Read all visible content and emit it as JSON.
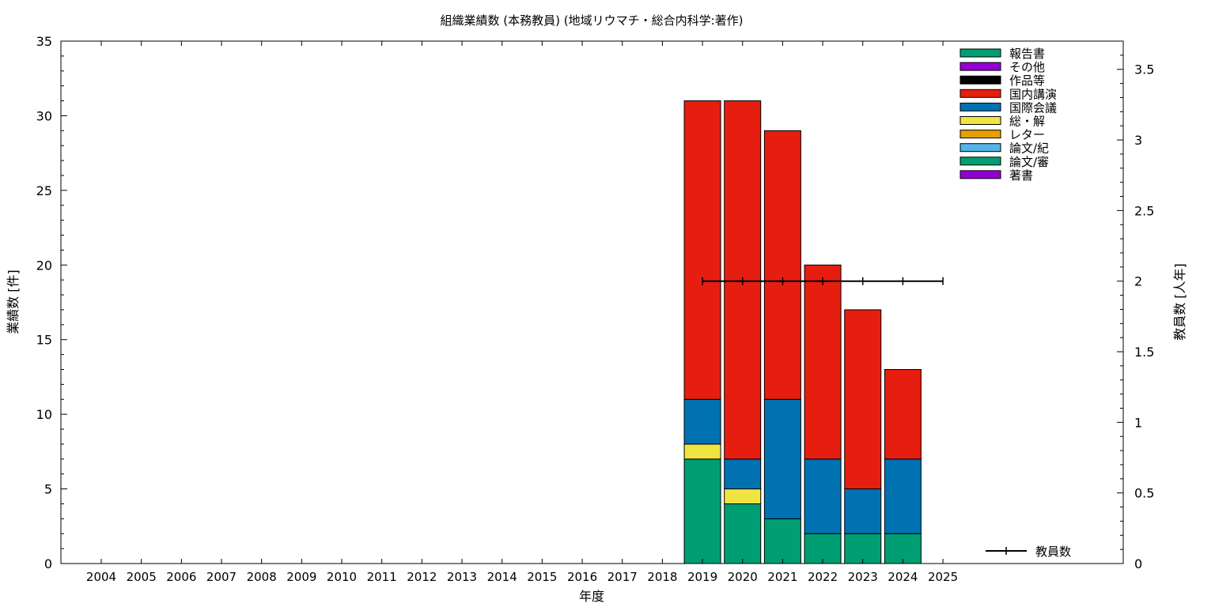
{
  "chart_data": {
    "type": "bar",
    "stacked": true,
    "title": "組織業績数 (本務教員) (地域リウマチ・総合内科学:著作)",
    "xlabel": "年度",
    "ylabel": "業績数 [件]",
    "y2label": "教員数 [人年]",
    "ylim": [
      0,
      35
    ],
    "y2lim": [
      0,
      3.7
    ],
    "yticks": [
      0,
      5,
      10,
      15,
      20,
      25,
      30,
      35
    ],
    "y2ticks": [
      0,
      0.5,
      1,
      1.5,
      2,
      2.5,
      3,
      3.5
    ],
    "categories": [
      "2004",
      "2005",
      "2006",
      "2007",
      "2008",
      "2009",
      "2010",
      "2011",
      "2012",
      "2013",
      "2014",
      "2015",
      "2016",
      "2017",
      "2018",
      "2019",
      "2020",
      "2021",
      "2022",
      "2023",
      "2024",
      "2025"
    ],
    "legend_position": "top-right",
    "series": [
      {
        "name": "著書",
        "color": "#9400d3",
        "values": [
          0,
          0,
          0,
          0,
          0,
          0,
          0,
          0,
          0,
          0,
          0,
          0,
          0,
          0,
          0,
          0,
          0,
          0,
          0,
          0,
          0,
          0
        ]
      },
      {
        "name": "論文/審",
        "color": "#009e73",
        "values": [
          0,
          0,
          0,
          0,
          0,
          0,
          0,
          0,
          0,
          0,
          0,
          0,
          0,
          0,
          0,
          7,
          4,
          3,
          2,
          2,
          2,
          0
        ]
      },
      {
        "name": "論文/紀",
        "color": "#56b4e9",
        "values": [
          0,
          0,
          0,
          0,
          0,
          0,
          0,
          0,
          0,
          0,
          0,
          0,
          0,
          0,
          0,
          0,
          0,
          0,
          0,
          0,
          0,
          0
        ]
      },
      {
        "name": "レター",
        "color": "#e69f00",
        "values": [
          0,
          0,
          0,
          0,
          0,
          0,
          0,
          0,
          0,
          0,
          0,
          0,
          0,
          0,
          0,
          0,
          0,
          0,
          0,
          0,
          0,
          0
        ]
      },
      {
        "name": "総・解",
        "color": "#f0e442",
        "values": [
          0,
          0,
          0,
          0,
          0,
          0,
          0,
          0,
          0,
          0,
          0,
          0,
          0,
          0,
          0,
          1,
          1,
          0,
          0,
          0,
          0,
          0
        ]
      },
      {
        "name": "国際会議",
        "color": "#0072b2",
        "values": [
          0,
          0,
          0,
          0,
          0,
          0,
          0,
          0,
          0,
          0,
          0,
          0,
          0,
          0,
          0,
          3,
          2,
          8,
          5,
          3,
          5,
          0
        ]
      },
      {
        "name": "国内講演",
        "color": "#e51e10",
        "values": [
          0,
          0,
          0,
          0,
          0,
          0,
          0,
          0,
          0,
          0,
          0,
          0,
          0,
          0,
          0,
          20,
          24,
          18,
          13,
          12,
          6,
          0
        ]
      },
      {
        "name": "作品等",
        "color": "#000000",
        "values": [
          0,
          0,
          0,
          0,
          0,
          0,
          0,
          0,
          0,
          0,
          0,
          0,
          0,
          0,
          0,
          0,
          0,
          0,
          0,
          0,
          0,
          0
        ]
      },
      {
        "name": "その他",
        "color": "#9400d3",
        "values": [
          0,
          0,
          0,
          0,
          0,
          0,
          0,
          0,
          0,
          0,
          0,
          0,
          0,
          0,
          0,
          0,
          0,
          0,
          0,
          0,
          0,
          0
        ]
      },
      {
        "name": "報告書",
        "color": "#009e73",
        "values": [
          0,
          0,
          0,
          0,
          0,
          0,
          0,
          0,
          0,
          0,
          0,
          0,
          0,
          0,
          0,
          0,
          0,
          0,
          0,
          0,
          0,
          0
        ]
      }
    ],
    "line_series": {
      "name": "教員数",
      "axis": "y2",
      "color": "#000000",
      "x": [
        "2019",
        "2020",
        "2021",
        "2022",
        "2023",
        "2024",
        "2025"
      ],
      "values": [
        2,
        2,
        2,
        2,
        2,
        2,
        2
      ]
    }
  }
}
